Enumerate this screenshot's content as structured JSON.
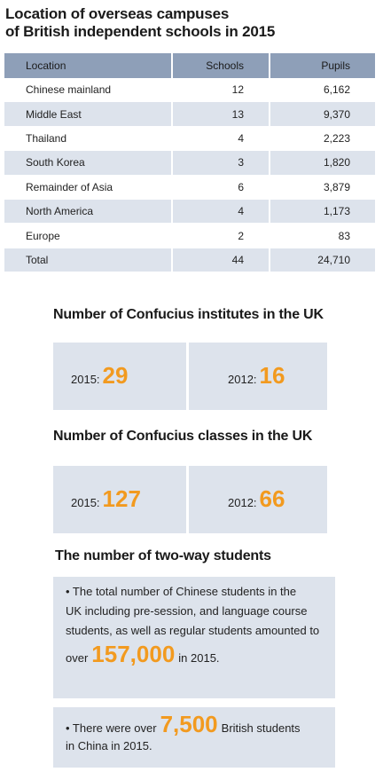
{
  "title": {
    "line1": "Location of overseas campuses",
    "line2": "of British independent schools in 2015"
  },
  "campus_table": {
    "headers": [
      "Location",
      "Schools",
      "Pupils"
    ],
    "rows": [
      [
        "Chinese mainland",
        "12",
        "6,162"
      ],
      [
        "Middle East",
        "13",
        "9,370"
      ],
      [
        "Thailand",
        "4",
        "2,223"
      ],
      [
        "South Korea",
        "3",
        "1,820"
      ],
      [
        "Remainder of Asia",
        "6",
        "3,879"
      ],
      [
        "North America",
        "4",
        "1,173"
      ],
      [
        "Europe",
        "2",
        "83"
      ],
      [
        "Total",
        "44",
        "24,710"
      ]
    ]
  },
  "institutes": {
    "title": "Number of Confucius institutes in the UK",
    "left_label": "2015:",
    "left_value": "29",
    "right_label": "2012:",
    "right_value": "16"
  },
  "classes": {
    "title": "Number of Confucius classes in the UK",
    "left_label": "2015:",
    "left_value": "127",
    "right_label": "2012:",
    "right_value": "66"
  },
  "two_way": {
    "title": "The number of two-way students",
    "p1_line1": "• The total number of Chinese students in the",
    "p1_line2": "UK including  pre-session, and language course",
    "p1_line3": "students, as well as regular students amounted to",
    "p1_over": "over",
    "p1_value": "157,000",
    "p1_tail": "in 2015.",
    "p2_lead": "• There were over",
    "p2_value": "7,500",
    "p2_tail": "British students",
    "p2_line2": "in China in 2015."
  },
  "colors": {
    "header_blue": "#8e9fb8",
    "row_shade": "#dde3ec",
    "accent_orange": "#f29a1f"
  }
}
